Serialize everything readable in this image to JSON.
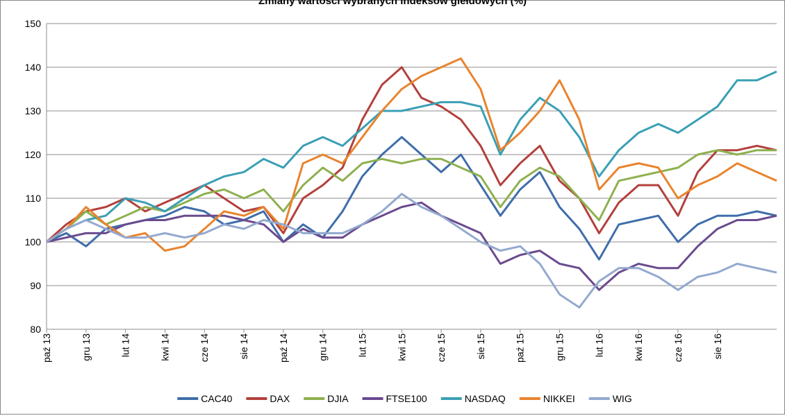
{
  "chart_data": {
    "type": "line",
    "title": "Zmiany wartości wybranych indeksów giełdowych (%)",
    "categories": [
      "paź 13",
      null,
      "gru 13",
      null,
      "lut 14",
      null,
      "kwi 14",
      null,
      "cze 14",
      null,
      "sie 14",
      null,
      "paź 14",
      null,
      "gru 14",
      null,
      "lut 15",
      null,
      "kwi 15",
      null,
      "cze 15",
      null,
      "sie 15",
      null,
      "paź 15",
      null,
      "gru 15",
      null,
      "lut 16",
      null,
      "kwi 16",
      null,
      "cze 16",
      null,
      "sie 16",
      null,
      null,
      null
    ],
    "series": [
      {
        "name": "CAC40",
        "color": "#3f6daa",
        "values": [
          100,
          102,
          99,
          103,
          104,
          105,
          106,
          108,
          107,
          104,
          105,
          107,
          100,
          104,
          101,
          107,
          115,
          120,
          124,
          120,
          116,
          120,
          113,
          106,
          112,
          116,
          108,
          103,
          96,
          104,
          105,
          106,
          100,
          104,
          106,
          106,
          107,
          106
        ]
      },
      {
        "name": "DAX",
        "color": "#b3403c",
        "values": [
          100,
          104,
          107,
          108,
          110,
          107,
          109,
          111,
          113,
          110,
          107,
          108,
          102,
          110,
          113,
          117,
          128,
          136,
          140,
          133,
          131,
          128,
          122,
          113,
          118,
          122,
          114,
          110,
          102,
          109,
          113,
          113,
          106,
          116,
          121,
          121,
          122,
          121
        ]
      },
      {
        "name": "DJIA",
        "color": "#8eb04f",
        "values": [
          100,
          103,
          107,
          104,
          106,
          108,
          107,
          109,
          111,
          112,
          110,
          112,
          107,
          113,
          117,
          114,
          118,
          119,
          118,
          119,
          119,
          117,
          115,
          108,
          114,
          117,
          115,
          110,
          105,
          114,
          115,
          116,
          117,
          120,
          121,
          120,
          121,
          121
        ]
      },
      {
        "name": "FTSE100",
        "color": "#6b4a8e",
        "values": [
          100,
          101,
          102,
          102,
          104,
          105,
          105,
          106,
          106,
          106,
          105,
          104,
          100,
          103,
          101,
          101,
          104,
          106,
          108,
          109,
          106,
          104,
          102,
          95,
          97,
          98,
          95,
          94,
          89,
          93,
          95,
          94,
          94,
          99,
          103,
          105,
          105,
          106
        ]
      },
      {
        "name": "NASDAQ",
        "color": "#3a9fb5",
        "values": [
          100,
          103,
          105,
          106,
          110,
          109,
          107,
          110,
          113,
          115,
          116,
          119,
          117,
          122,
          124,
          122,
          126,
          130,
          130,
          131,
          132,
          132,
          131,
          120,
          128,
          133,
          130,
          124,
          115,
          121,
          125,
          127,
          125,
          128,
          131,
          137,
          137,
          139
        ]
      },
      {
        "name": "NIKKEI",
        "color": "#e8842e",
        "values": [
          100,
          103,
          108,
          104,
          101,
          102,
          98,
          99,
          103,
          107,
          106,
          108,
          103,
          118,
          120,
          118,
          124,
          130,
          135,
          138,
          140,
          142,
          135,
          121,
          125,
          130,
          137,
          128,
          112,
          117,
          118,
          117,
          110,
          113,
          115,
          118,
          116,
          114
        ]
      },
      {
        "name": "WIG",
        "color": "#93a9cf",
        "values": [
          100,
          103,
          105,
          103,
          101,
          101,
          102,
          101,
          102,
          104,
          103,
          105,
          104,
          102,
          102,
          102,
          104,
          107,
          111,
          108,
          106,
          103,
          100,
          98,
          99,
          95,
          88,
          85,
          91,
          94,
          94,
          92,
          89,
          92,
          93,
          95,
          94,
          93
        ]
      }
    ],
    "ylim": [
      80,
      150
    ],
    "yticks": [
      80,
      90,
      100,
      110,
      120,
      130,
      140,
      150
    ],
    "grid": true,
    "legend": "bottom"
  }
}
